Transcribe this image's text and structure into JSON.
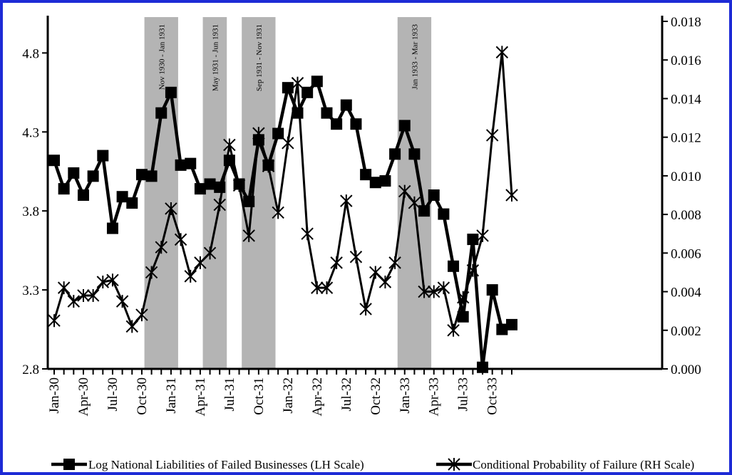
{
  "chart_data": {
    "type": "line",
    "months": [
      "Jan-30",
      "Feb-30",
      "Mar-30",
      "Apr-30",
      "May-30",
      "Jun-30",
      "Jul-30",
      "Aug-30",
      "Sep-30",
      "Oct-30",
      "Nov-30",
      "Dec-30",
      "Jan-31",
      "Feb-31",
      "Mar-31",
      "Apr-31",
      "May-31",
      "Jun-31",
      "Jul-31",
      "Aug-31",
      "Sep-31",
      "Oct-31",
      "Nov-31",
      "Dec-31",
      "Jan-32",
      "Feb-32",
      "Mar-32",
      "Apr-32",
      "May-32",
      "Jun-32",
      "Jul-32",
      "Aug-32",
      "Sep-32",
      "Oct-32",
      "Nov-32",
      "Dec-32",
      "Jan-33",
      "Feb-33",
      "Mar-33",
      "Apr-33",
      "May-33",
      "Jun-33",
      "Jul-33",
      "Aug-33",
      "Sep-33",
      "Oct-33",
      "Nov-33",
      "Dec-33"
    ],
    "x_tick_labels": [
      "Jan-30",
      "Apr-30",
      "Jul-30",
      "Oct-30",
      "Jan-31",
      "Apr-31",
      "Jul-31",
      "Oct-31",
      "Jan-32",
      "Apr-32",
      "Jul-32",
      "Oct-32",
      "Jan-33",
      "Apr-33",
      "Jul-33",
      "Oct-33"
    ],
    "left_axis": {
      "min": 2.8,
      "max": 5.0,
      "ticks": [
        "2.8",
        "3.3",
        "3.8",
        "4.3",
        "4.8"
      ]
    },
    "right_axis": {
      "min": 0.0,
      "max": 0.018,
      "ticks": [
        "0.000",
        "0.002",
        "0.004",
        "0.006",
        "0.008",
        "0.010",
        "0.012",
        "0.014",
        "0.016",
        "0.018"
      ]
    },
    "series": [
      {
        "name": "Log National Liabilities of Failed Businesses (LH Scale)",
        "axis": "left",
        "marker": "square",
        "values": [
          4.12,
          3.94,
          4.04,
          3.9,
          4.02,
          4.15,
          3.69,
          3.89,
          3.85,
          4.03,
          4.02,
          4.42,
          4.55,
          4.09,
          4.1,
          3.94,
          3.97,
          3.95,
          4.12,
          3.97,
          3.86,
          4.25,
          4.09,
          4.29,
          4.58,
          4.42,
          4.55,
          4.62,
          4.42,
          4.35,
          4.47,
          4.35,
          4.03,
          3.98,
          3.99,
          4.16,
          4.34,
          4.16,
          3.8,
          3.9,
          3.78,
          3.45,
          3.13,
          3.62,
          2.81,
          3.3,
          3.05,
          3.08
        ]
      },
      {
        "name": "Conditional Probability of Failure (RH Scale)",
        "axis": "right",
        "marker": "star",
        "values": [
          0.0025,
          0.0042,
          0.0035,
          0.0038,
          0.0038,
          0.0045,
          0.0046,
          0.0035,
          0.0022,
          0.0028,
          0.005,
          0.0063,
          0.0083,
          0.0067,
          0.0048,
          0.0055,
          0.006,
          0.0085,
          0.0116,
          0.0095,
          0.0069,
          0.0122,
          0.0105,
          0.0081,
          0.0117,
          0.0148,
          0.007,
          0.0042,
          0.0042,
          0.0055,
          0.0087,
          0.0058,
          0.0031,
          0.005,
          0.0045,
          0.0055,
          0.0092,
          0.0086,
          0.004,
          0.004,
          0.0042,
          0.002,
          0.0037,
          0.0051,
          0.0069,
          0.0121,
          0.0164,
          0.009
        ]
      }
    ],
    "shaded_periods": [
      {
        "label": "Nov 1930 - Jan 1931",
        "start": "Nov-30",
        "end": "Jan-31"
      },
      {
        "label": "May 1931 - Jun 1931",
        "start": "May-31",
        "end": "Jun-31"
      },
      {
        "label": "Sep 1931 - Nov 1931",
        "start": "Sep-31",
        "end": "Nov-31"
      },
      {
        "label": "Jan 1933 - Mar 1933",
        "start": "Jan-33",
        "end": "Mar-33"
      }
    ],
    "legend_position": "bottom",
    "grid": false
  },
  "colors": {
    "frame": "#1d2bd6",
    "shade": "#b4b4b4",
    "line": "#000000"
  }
}
